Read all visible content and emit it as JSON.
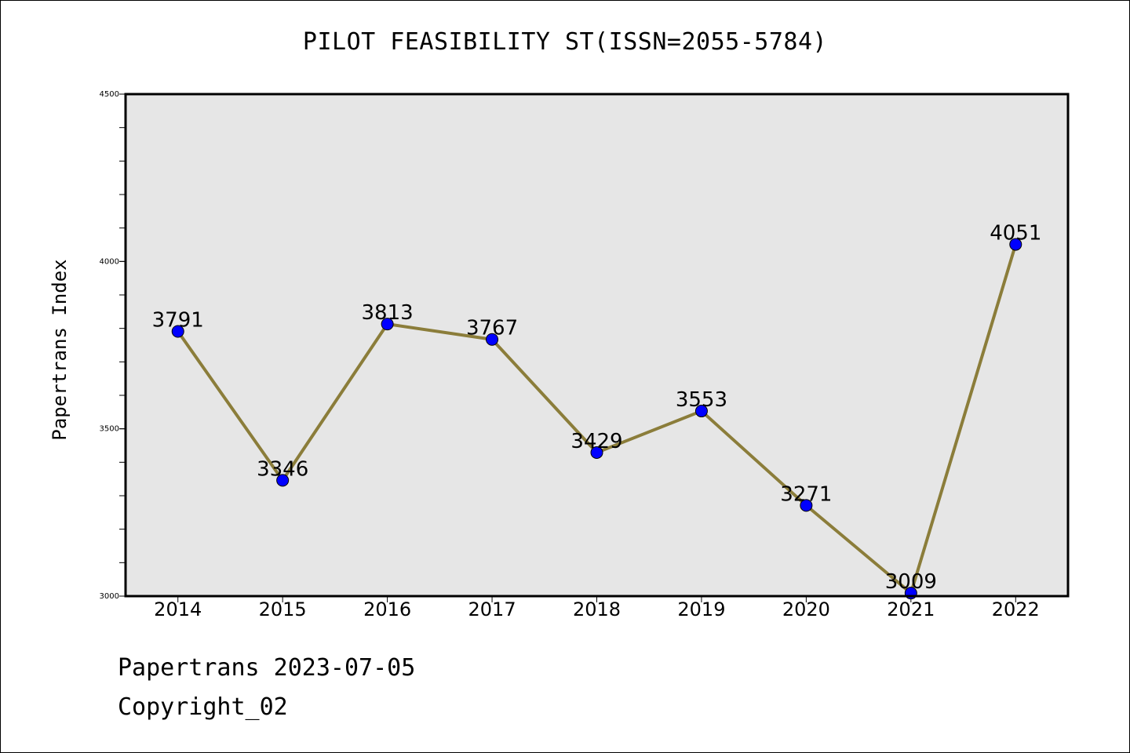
{
  "chart_data": {
    "type": "line",
    "title": "PILOT FEASIBILITY ST(ISSN=2055-5784)",
    "xlabel": "",
    "ylabel": "Papertrans Index",
    "categories": [
      "2014",
      "2015",
      "2016",
      "2017",
      "2018",
      "2019",
      "2020",
      "2021",
      "2022"
    ],
    "values": [
      3791,
      3346,
      3813,
      3767,
      3429,
      3553,
      3271,
      3009,
      4051
    ],
    "ylim": [
      3000,
      4500
    ],
    "yticks": [
      "3000",
      "3500",
      "4000",
      "4500"
    ],
    "grid": false,
    "data_labels": true,
    "line_color": "#8B7D3A",
    "marker_color": "#0000FF",
    "background_color": "#E6E6E6"
  },
  "footer": {
    "date_text": "Papertrans 2023-07-05",
    "copyright_text": "Copyright_02"
  }
}
